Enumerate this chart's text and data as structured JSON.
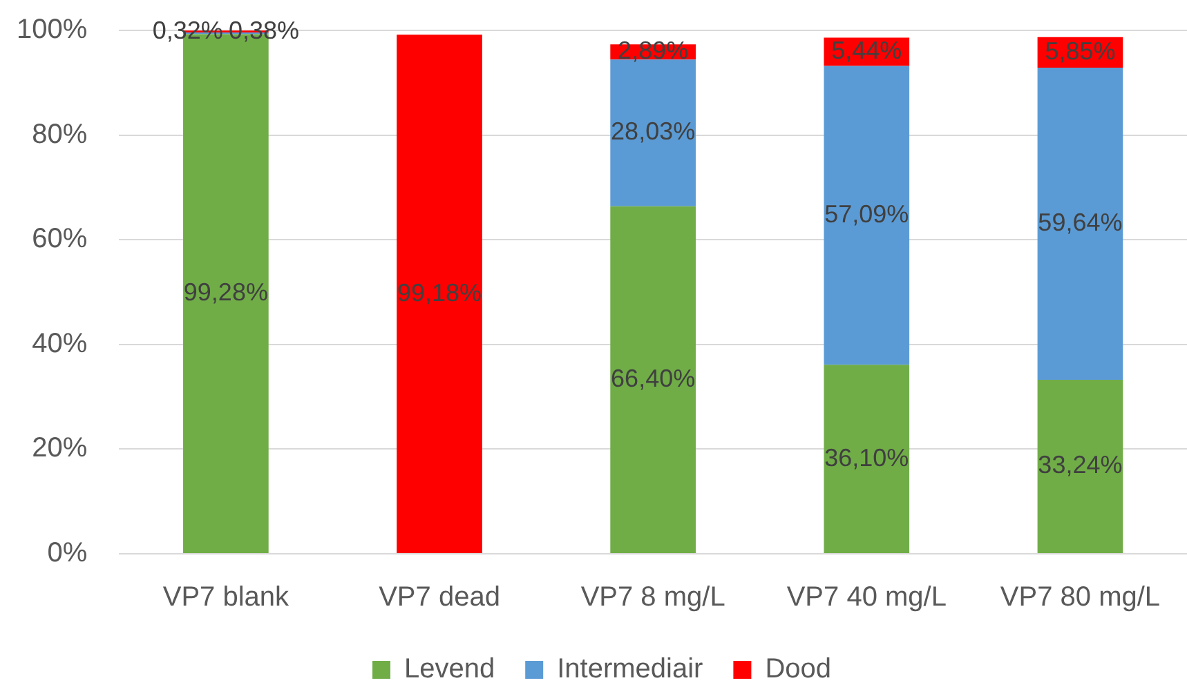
{
  "chart_data": {
    "type": "bar",
    "stacked": true,
    "categories": [
      "VP7 blank",
      "VP7 dead",
      "VP7 8 mg/L",
      "VP7 40 mg/L",
      "VP7 80 mg/L"
    ],
    "series": [
      {
        "name": "Levend",
        "color": "#70ad47",
        "values": [
          99.28,
          null,
          66.4,
          36.1,
          33.24
        ],
        "value_labels": [
          "99,28%",
          null,
          "66,40%",
          "36,10%",
          "33,24%"
        ]
      },
      {
        "name": "Intermediair",
        "color": "#5b9bd5",
        "values": [
          0.32,
          null,
          28.03,
          57.09,
          59.64
        ],
        "value_labels": [
          "0,32%",
          null,
          "28,03%",
          "57,09%",
          "59,64%"
        ]
      },
      {
        "name": "Dood",
        "color": "#ff0000",
        "values": [
          0.38,
          99.18,
          2.89,
          5.44,
          5.85
        ],
        "value_labels": [
          "0,38%",
          "99,18%",
          "2,89%",
          "5,44%",
          "5,85%"
        ]
      }
    ],
    "ylim": [
      0,
      100
    ],
    "yticks": [
      {
        "value": 0,
        "label": "0%"
      },
      {
        "value": 20,
        "label": "20%"
      },
      {
        "value": 40,
        "label": "40%"
      },
      {
        "value": 60,
        "label": "60%"
      },
      {
        "value": 80,
        "label": "80%"
      },
      {
        "value": 100,
        "label": "100%"
      }
    ],
    "grid": "y",
    "legend": "bottom"
  }
}
